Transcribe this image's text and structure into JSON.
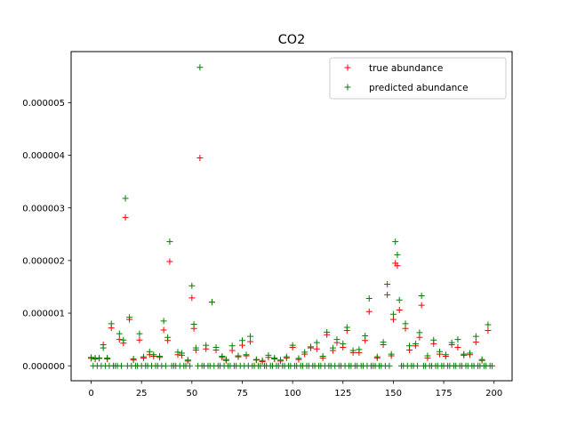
{
  "chart_data": {
    "type": "scatter",
    "title": "CO2",
    "xlabel": "",
    "ylabel": "",
    "xlim": [
      -9.95,
      208.95
    ],
    "ylim": [
      -2.84e-07,
      5.97e-06
    ],
    "x_ticks": [
      0,
      25,
      50,
      75,
      100,
      125,
      150,
      175,
      200
    ],
    "x_tick_labels": [
      "0",
      "25",
      "50",
      "75",
      "100",
      "125",
      "150",
      "175",
      "200"
    ],
    "y_ticks": [
      0,
      1e-06,
      2e-06,
      3e-06,
      4e-06,
      5e-06
    ],
    "y_tick_labels": [
      "0.000000",
      "0.000001",
      "0.000002",
      "0.000003",
      "0.000004",
      "0.000005"
    ],
    "grid": false,
    "legend_position": "top-right",
    "series": [
      {
        "name": "true abundance",
        "color": "#ff0000",
        "marker": "+",
        "x": [
          0,
          2,
          4,
          6,
          8,
          10,
          14,
          16,
          17,
          19,
          21,
          24,
          26,
          29,
          31,
          34,
          36,
          38,
          39,
          43,
          45,
          48,
          50,
          51,
          52,
          54,
          57,
          60,
          62,
          65,
          67,
          70,
          73,
          75,
          77,
          79,
          82,
          85,
          88,
          91,
          94,
          97,
          100,
          103,
          106,
          109,
          112,
          115,
          117,
          120,
          122,
          125,
          127,
          130,
          133,
          136,
          138,
          142,
          145,
          147,
          149,
          150,
          151,
          152,
          153,
          156,
          158,
          161,
          163,
          164,
          167,
          170,
          173,
          176,
          179,
          182,
          185,
          188,
          191,
          194,
          197
        ],
        "y": [
          1.4e-07,
          1.3e-07,
          1.4e-07,
          4e-07,
          1.3e-07,
          7.2e-07,
          5e-07,
          4.3e-07,
          2.82e-06,
          8.8e-07,
          1.1e-07,
          4.9e-07,
          1.5e-07,
          2.1e-07,
          1.8e-07,
          1.6e-07,
          6.8e-07,
          4.8e-07,
          1.98e-06,
          2.1e-07,
          2e-07,
          9e-08,
          1.29e-06,
          7.1e-07,
          3e-07,
          3.95e-06,
          3.2e-07,
          1.21e-06,
          3e-07,
          1.6e-07,
          1e-07,
          2.9e-07,
          1.7e-07,
          3.9e-07,
          1.9e-07,
          4.6e-07,
          1.1e-07,
          8e-08,
          1.6e-07,
          1.3e-07,
          9e-08,
          1.5e-07,
          3.5e-07,
          1.2e-07,
          2.2e-07,
          3.4e-07,
          3.2e-07,
          1.5e-07,
          5.9e-07,
          2.9e-07,
          4.4e-07,
          3.5e-07,
          6.7e-07,
          2.5e-07,
          2.5e-07,
          4.8e-07,
          1.03e-06,
          1.5e-07,
          4e-07,
          1.35e-06,
          1.9e-07,
          8.8e-07,
          1.95e-06,
          1.9e-06,
          1.06e-06,
          7.1e-07,
          3e-07,
          3.8e-07,
          5.4e-07,
          1.15e-06,
          1.5e-07,
          4.2e-07,
          2.2e-07,
          1.8e-07,
          4e-07,
          3.5e-07,
          2e-07,
          2.1e-07,
          4.5e-07,
          1e-07,
          6.7e-07
        ]
      },
      {
        "name": "predicted abundance",
        "color": "#008000",
        "marker": "+",
        "x": [
          0,
          2,
          4,
          6,
          8,
          10,
          14,
          16,
          17,
          19,
          21,
          24,
          26,
          29,
          31,
          34,
          36,
          38,
          39,
          43,
          45,
          48,
          50,
          51,
          52,
          54,
          57,
          60,
          62,
          65,
          67,
          70,
          73,
          75,
          77,
          79,
          82,
          85,
          88,
          91,
          94,
          97,
          100,
          103,
          106,
          109,
          112,
          115,
          117,
          120,
          122,
          125,
          127,
          130,
          133,
          136,
          138,
          142,
          145,
          147,
          149,
          150,
          151,
          152,
          153,
          156,
          158,
          161,
          163,
          164,
          167,
          170,
          173,
          176,
          179,
          182,
          185,
          188,
          191,
          194,
          197
        ],
        "y": [
          1.6e-07,
          1.5e-07,
          1.5e-07,
          3.4e-07,
          1.5e-07,
          8e-07,
          6.1e-07,
          4.9e-07,
          3.18e-06,
          9.2e-07,
          1.3e-07,
          6.1e-07,
          1.7e-07,
          2.7e-07,
          2.1e-07,
          1.8e-07,
          8.5e-07,
          5.4e-07,
          2.36e-06,
          2.6e-07,
          2.4e-07,
          1.1e-07,
          1.52e-06,
          7.9e-07,
          3.4e-07,
          5.67e-06,
          3.9e-07,
          1.21e-06,
          3.5e-07,
          1.8e-07,
          1.2e-07,
          3.8e-07,
          1.9e-07,
          4.8e-07,
          2.1e-07,
          5.6e-07,
          1.2e-07,
          1e-07,
          2e-07,
          1.5e-07,
          1.1e-07,
          1.7e-07,
          3.9e-07,
          1.4e-07,
          2.6e-07,
          3.6e-07,
          4.4e-07,
          1.8e-07,
          6.4e-07,
          3.4e-07,
          5e-07,
          4.2e-07,
          7.3e-07,
          2.9e-07,
          3.1e-07,
          5.7e-07,
          1.28e-06,
          1.7e-07,
          4.5e-07,
          1.55e-06,
          2.2e-07,
          9.8e-07,
          2.36e-06,
          2.11e-06,
          1.25e-06,
          8e-07,
          3.8e-07,
          4.2e-07,
          6.3e-07,
          1.33e-06,
          1.9e-07,
          4.9e-07,
          2.7e-07,
          2.1e-07,
          4.4e-07,
          5e-07,
          2.2e-07,
          2.4e-07,
          5.6e-07,
          1.2e-07,
          7.8e-07
        ]
      },
      {
        "name": "",
        "color": "#008000",
        "marker": "+",
        "role": "near-zero points (true and predicted overlap)",
        "x": [
          1,
          3,
          5,
          7,
          9,
          11,
          12,
          13,
          15,
          18,
          20,
          22,
          23,
          25,
          27,
          28,
          30,
          32,
          33,
          35,
          37,
          40,
          41,
          42,
          44,
          46,
          47,
          49,
          53,
          55,
          56,
          58,
          59,
          61,
          63,
          64,
          66,
          68,
          69,
          71,
          72,
          74,
          76,
          78,
          80,
          81,
          83,
          84,
          86,
          87,
          89,
          90,
          92,
          93,
          95,
          96,
          98,
          99,
          101,
          102,
          104,
          105,
          107,
          108,
          110,
          111,
          113,
          114,
          116,
          118,
          119,
          121,
          123,
          124,
          126,
          128,
          129,
          131,
          132,
          134,
          135,
          137,
          139,
          140,
          141,
          143,
          144,
          146,
          148,
          154,
          155,
          157,
          159,
          160,
          162,
          165,
          166,
          168,
          169,
          171,
          172,
          174,
          175,
          177,
          178,
          180,
          181,
          183,
          184,
          186,
          187,
          189,
          190,
          192,
          193,
          195,
          196,
          198,
          199
        ],
        "y": [
          0,
          0,
          0,
          0,
          0,
          0,
          0,
          0,
          0,
          0,
          0,
          0,
          0,
          0,
          0,
          0,
          0,
          0,
          0,
          0,
          0,
          0,
          0,
          0,
          0,
          0,
          0,
          0,
          0,
          0,
          0,
          0,
          0,
          0,
          0,
          0,
          0,
          0,
          0,
          0,
          0,
          0,
          0,
          0,
          0,
          0,
          0,
          0,
          0,
          0,
          0,
          0,
          0,
          0,
          0,
          0,
          0,
          0,
          0,
          0,
          0,
          0,
          0,
          0,
          0,
          0,
          0,
          0,
          0,
          0,
          0,
          0,
          0,
          0,
          0,
          0,
          0,
          0,
          0,
          0,
          0,
          0,
          0,
          0,
          0,
          0,
          0,
          0,
          0,
          0,
          0,
          0,
          0,
          0,
          0,
          0,
          0,
          0,
          0,
          0,
          0,
          0,
          0,
          0,
          0,
          0,
          0,
          0,
          0,
          0,
          0,
          0,
          0,
          0,
          0,
          0,
          0,
          0,
          0
        ]
      }
    ]
  }
}
